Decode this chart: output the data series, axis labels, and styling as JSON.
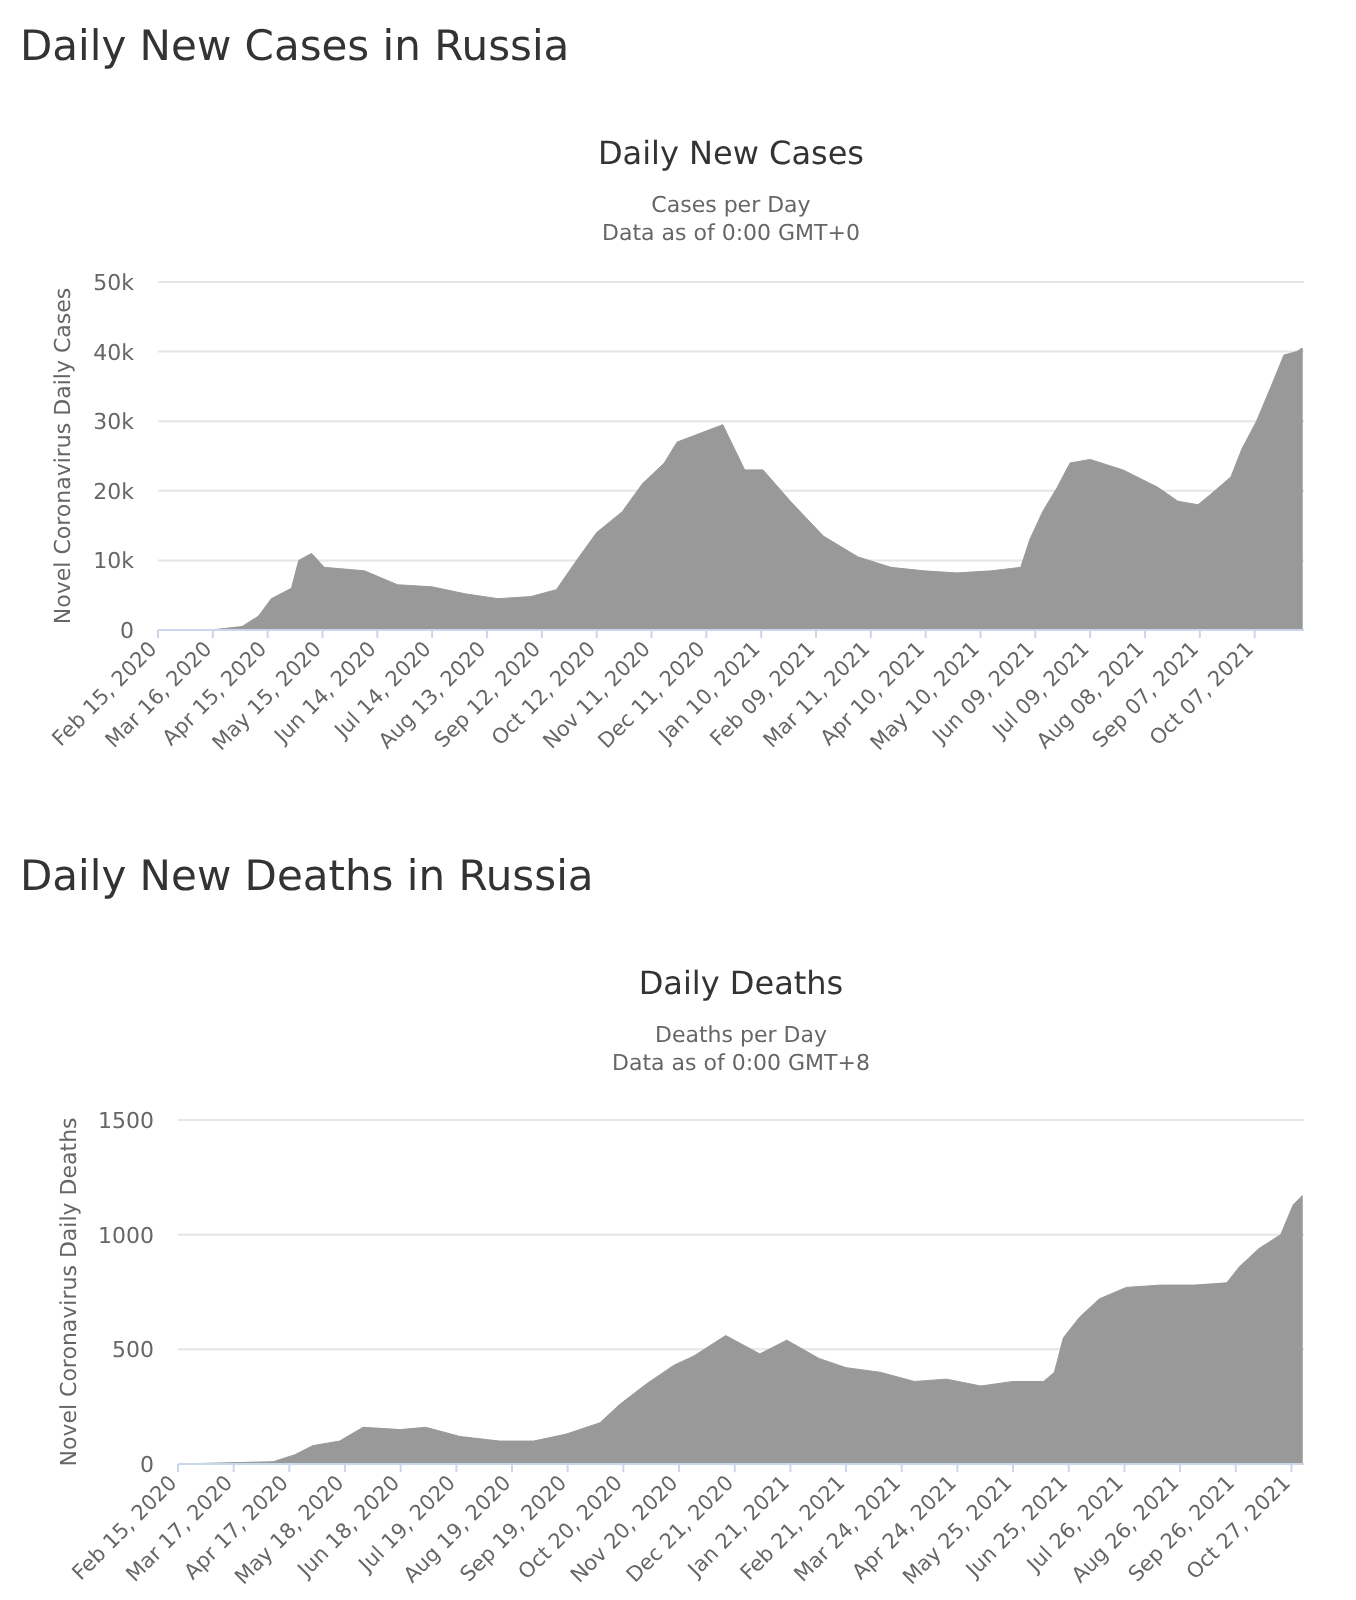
{
  "chart_data": [
    {
      "type": "area",
      "title": "Daily New Cases in Russia",
      "subtitle": "Daily New Cases",
      "annotations": [
        "Cases per Day",
        "Data as of 0:00 GMT+0"
      ],
      "ylabel": "Novel Coronavirus Daily Cases",
      "x": [
        "2020-02-15",
        "2020-03-15",
        "2020-04-01",
        "2020-04-10",
        "2020-04-17",
        "2020-04-28",
        "2020-05-02",
        "2020-05-09",
        "2020-05-16",
        "2020-05-25",
        "2020-06-07",
        "2020-06-25",
        "2020-07-14",
        "2020-08-01",
        "2020-08-19",
        "2020-09-06",
        "2020-09-20",
        "2020-10-01",
        "2020-10-12",
        "2020-10-26",
        "2020-11-06",
        "2020-11-18",
        "2020-11-25",
        "2020-12-20",
        "2021-01-01",
        "2021-01-11",
        "2021-01-26",
        "2021-02-13",
        "2021-03-04",
        "2021-03-22",
        "2021-04-09",
        "2021-04-27",
        "2021-05-16",
        "2021-06-01",
        "2021-06-06",
        "2021-06-13",
        "2021-06-21",
        "2021-06-28",
        "2021-07-09",
        "2021-07-27",
        "2021-08-15",
        "2021-08-26",
        "2021-09-06",
        "2021-09-13",
        "2021-09-24",
        "2021-09-30",
        "2021-10-08",
        "2021-10-16",
        "2021-10-23",
        "2021-10-30",
        "2021-11-02"
      ],
      "series": [
        {
          "color": "#999999",
          "values": [
            0,
            0,
            500,
            2000,
            4500,
            6000,
            10000,
            11000,
            9000,
            8800,
            8500,
            6500,
            6200,
            5200,
            4500,
            4800,
            5800,
            10000,
            14000,
            17000,
            21000,
            24000,
            27000,
            29500,
            23000,
            23000,
            18500,
            13500,
            10500,
            9000,
            8500,
            8200,
            8500,
            9000,
            13000,
            17000,
            20500,
            24000,
            24500,
            23000,
            20500,
            18500,
            18000,
            19500,
            22000,
            26000,
            30000,
            35000,
            39500,
            40000,
            40500
          ]
        }
      ],
      "xlim": [
        "2020-02-15",
        "2021-11-03"
      ],
      "xticks": [
        {
          "value": "2020-02-15",
          "label": "Feb 15, 2020"
        },
        {
          "value": "2020-03-16",
          "label": "Mar 16, 2020"
        },
        {
          "value": "2020-04-15",
          "label": "Apr 15, 2020"
        },
        {
          "value": "2020-05-15",
          "label": "May 15, 2020"
        },
        {
          "value": "2020-06-14",
          "label": "Jun 14, 2020"
        },
        {
          "value": "2020-07-14",
          "label": "Jul 14, 2020"
        },
        {
          "value": "2020-08-13",
          "label": "Aug 13, 2020"
        },
        {
          "value": "2020-09-12",
          "label": "Sep 12, 2020"
        },
        {
          "value": "2020-10-12",
          "label": "Oct 12, 2020"
        },
        {
          "value": "2020-11-11",
          "label": "Nov 11, 2020"
        },
        {
          "value": "2020-12-11",
          "label": "Dec 11, 2020"
        },
        {
          "value": "2021-01-10",
          "label": "Jan 10, 2021"
        },
        {
          "value": "2021-02-09",
          "label": "Feb 09, 2021"
        },
        {
          "value": "2021-03-11",
          "label": "Mar 11, 2021"
        },
        {
          "value": "2021-04-10",
          "label": "Apr 10, 2021"
        },
        {
          "value": "2021-05-10",
          "label": "May 10, 2021"
        },
        {
          "value": "2021-06-09",
          "label": "Jun 09, 2021"
        },
        {
          "value": "2021-07-09",
          "label": "Jul 09, 2021"
        },
        {
          "value": "2021-08-08",
          "label": "Aug 08, 2021"
        },
        {
          "value": "2021-09-07",
          "label": "Sep 07, 2021"
        },
        {
          "value": "2021-10-07",
          "label": "Oct 07, 2021"
        }
      ],
      "ylim": [
        0,
        50000
      ],
      "yticks": [
        0,
        {
          "value": 10000,
          "label": "10k"
        },
        {
          "value": 20000,
          "label": "20k"
        },
        {
          "value": 30000,
          "label": "30k"
        },
        {
          "value": 40000,
          "label": "40k"
        },
        {
          "value": 50000,
          "label": "50k"
        }
      ],
      "grid": "y"
    },
    {
      "type": "area",
      "title": "Daily New Deaths in Russia",
      "subtitle": "Daily Deaths",
      "annotations": [
        "Deaths per Day",
        "Data as of 0:00 GMT+8"
      ],
      "ylabel": "Novel Coronavirus Daily Deaths",
      "x": [
        "2020-02-15",
        "2020-04-08",
        "2020-04-20",
        "2020-04-30",
        "2020-05-15",
        "2020-05-28",
        "2020-06-18",
        "2020-07-02",
        "2020-07-21",
        "2020-08-12",
        "2020-08-31",
        "2020-09-18",
        "2020-10-07",
        "2020-10-18",
        "2020-11-02",
        "2020-11-17",
        "2020-11-28",
        "2020-12-16",
        "2021-01-04",
        "2021-01-19",
        "2021-02-06",
        "2021-02-21",
        "2021-03-12",
        "2021-03-31",
        "2021-04-18",
        "2021-05-07",
        "2021-05-25",
        "2021-06-11",
        "2021-06-17",
        "2021-06-22",
        "2021-07-01",
        "2021-07-12",
        "2021-07-27",
        "2021-08-15",
        "2021-09-03",
        "2021-09-21",
        "2021-09-28",
        "2021-10-09",
        "2021-10-21",
        "2021-10-28",
        "2021-11-02"
      ],
      "series": [
        {
          "color": "#999999",
          "values": [
            0,
            10,
            40,
            80,
            100,
            160,
            150,
            160,
            120,
            100,
            100,
            130,
            180,
            260,
            350,
            430,
            470,
            560,
            480,
            540,
            460,
            420,
            400,
            360,
            370,
            340,
            360,
            360,
            400,
            550,
            640,
            720,
            770,
            780,
            780,
            790,
            860,
            940,
            1000,
            1130,
            1170
          ]
        }
      ],
      "xlim": [
        "2020-02-15",
        "2021-11-03"
      ],
      "xticks": [
        {
          "value": "2020-02-15",
          "label": "Feb 15, 2020"
        },
        {
          "value": "2020-03-17",
          "label": "Mar 17, 2020"
        },
        {
          "value": "2020-04-17",
          "label": "Apr 17, 2020"
        },
        {
          "value": "2020-05-18",
          "label": "May 18, 2020"
        },
        {
          "value": "2020-06-18",
          "label": "Jun 18, 2020"
        },
        {
          "value": "2020-07-19",
          "label": "Jul 19, 2020"
        },
        {
          "value": "2020-08-19",
          "label": "Aug 19, 2020"
        },
        {
          "value": "2020-09-19",
          "label": "Sep 19, 2020"
        },
        {
          "value": "2020-10-20",
          "label": "Oct 20, 2020"
        },
        {
          "value": "2020-11-20",
          "label": "Nov 20, 2020"
        },
        {
          "value": "2020-12-21",
          "label": "Dec 21, 2020"
        },
        {
          "value": "2021-01-21",
          "label": "Jan 21, 2021"
        },
        {
          "value": "2021-02-21",
          "label": "Feb 21, 2021"
        },
        {
          "value": "2021-03-24",
          "label": "Mar 24, 2021"
        },
        {
          "value": "2021-04-24",
          "label": "Apr 24, 2021"
        },
        {
          "value": "2021-05-25",
          "label": "May 25, 2021"
        },
        {
          "value": "2021-06-25",
          "label": "Jun 25, 2021"
        },
        {
          "value": "2021-07-26",
          "label": "Jul 26, 2021"
        },
        {
          "value": "2021-08-26",
          "label": "Aug 26, 2021"
        },
        {
          "value": "2021-09-26",
          "label": "Sep 26, 2021"
        },
        {
          "value": "2021-10-27",
          "label": "Oct 27, 2021"
        }
      ],
      "ylim": [
        0,
        1500
      ],
      "yticks": [
        0,
        500,
        1000,
        1500
      ],
      "grid": "y"
    }
  ]
}
